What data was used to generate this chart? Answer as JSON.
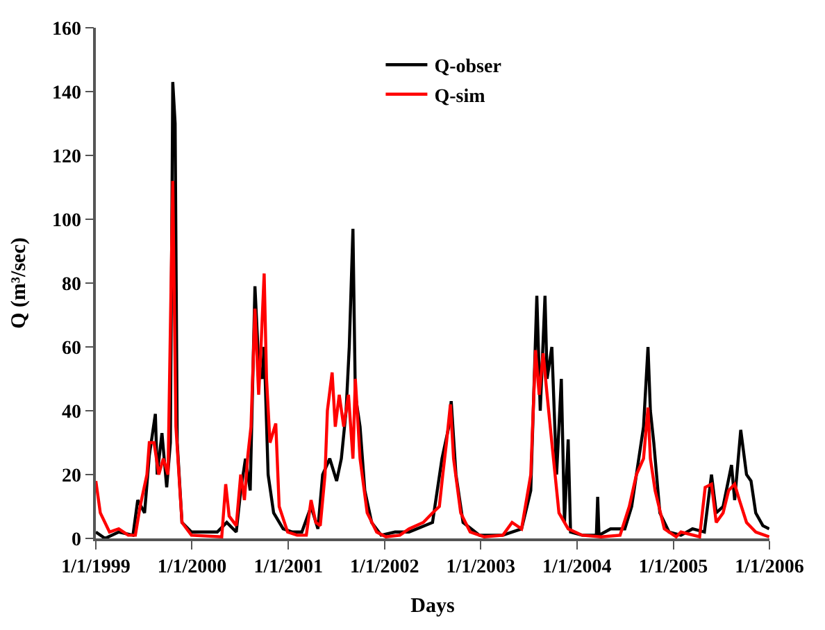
{
  "chart_data": {
    "type": "line",
    "xlabel": "Days",
    "ylabel": "Q (m³/sec)",
    "xlim": [
      "1999-01-01",
      "2006-01-01"
    ],
    "xticks": [
      {
        "value": "1999-01-01",
        "label": "1/1/1999"
      },
      {
        "value": "2000-01-01",
        "label": "1/1/2000"
      },
      {
        "value": "2001-01-01",
        "label": "1/1/2001"
      },
      {
        "value": "2002-01-01",
        "label": "1/1/2002"
      },
      {
        "value": "2003-01-01",
        "label": "1/1/2003"
      },
      {
        "value": "2004-01-01",
        "label": "1/1/2004"
      },
      {
        "value": "2005-01-01",
        "label": "1/1/2005"
      },
      {
        "value": "2006-01-01",
        "label": "1/1/2006"
      }
    ],
    "ylim": [
      0,
      160
    ],
    "yticks": [
      0,
      20,
      40,
      60,
      80,
      100,
      120,
      140,
      160
    ],
    "legend": "top",
    "marker": "none",
    "line_style": "solid",
    "series": [
      {
        "name": "Q-obser",
        "color": "#000000",
        "x": [
          "1999-01-01",
          "1999-02-05",
          "1999-03-29",
          "1999-05-22",
          "1999-06-09",
          "1999-07-05",
          "1999-07-23",
          "1999-08-15",
          "1999-08-22",
          "1999-09-09",
          "1999-09-27",
          "1999-10-11",
          "1999-10-20",
          "1999-10-29",
          "1999-11-06",
          "1999-11-24",
          "1999-12-30",
          "2000-04-06",
          "2000-05-12",
          "2000-06-17",
          "2000-07-04",
          "2000-07-22",
          "2000-08-09",
          "2000-08-27",
          "2000-09-10",
          "2000-09-23",
          "2000-10-01",
          "2000-10-16",
          "2000-11-06",
          "2000-12-12",
          "2001-01-16",
          "2001-02-21",
          "2001-03-28",
          "2001-04-23",
          "2001-05-11",
          "2001-06-07",
          "2001-07-03",
          "2001-07-21",
          "2001-08-08",
          "2001-08-20",
          "2001-09-03",
          "2001-09-12",
          "2001-09-30",
          "2001-10-18",
          "2001-11-13",
          "2001-12-19",
          "2002-02-10",
          "2002-04-04",
          "2002-07-02",
          "2002-08-07",
          "2002-09-02",
          "2002-09-11",
          "2002-09-29",
          "2002-10-26",
          "2002-12-27",
          "2003-03-26",
          "2003-06-05",
          "2003-07-10",
          "2003-08-02",
          "2003-08-15",
          "2003-09-02",
          "2003-09-10",
          "2003-09-28",
          "2003-10-16",
          "2003-11-03",
          "2003-11-15",
          "2003-11-29",
          "2003-12-08",
          "2004-01-21",
          "2004-03-15",
          "2004-03-20",
          "2004-03-25",
          "2004-05-08",
          "2004-07-01",
          "2004-07-27",
          "2004-08-23",
          "2004-09-10",
          "2004-09-27",
          "2004-10-06",
          "2004-10-19",
          "2004-11-11",
          "2004-12-16",
          "2005-01-30",
          "2005-03-15",
          "2005-04-29",
          "2005-05-26",
          "2005-06-13",
          "2005-07-09",
          "2005-08-10",
          "2005-08-22",
          "2005-09-14",
          "2005-10-06",
          "2005-10-23",
          "2005-11-10",
          "2005-12-07",
          "2005-12-31"
        ],
        "values": [
          2,
          0,
          2,
          1,
          12,
          8,
          26,
          39,
          20,
          33,
          16,
          30,
          143,
          130,
          30,
          5,
          2,
          2,
          5,
          2,
          15,
          25,
          15,
          79,
          55,
          50,
          60,
          20,
          8,
          3,
          2,
          2,
          10,
          3,
          20,
          25,
          18,
          25,
          40,
          60,
          97,
          45,
          35,
          15,
          5,
          1,
          2,
          2,
          5,
          25,
          35,
          43,
          20,
          5,
          1,
          1,
          3,
          15,
          76,
          40,
          76,
          50,
          60,
          20,
          50,
          5,
          31,
          2,
          1,
          1,
          13,
          1,
          3,
          3,
          10,
          25,
          35,
          60,
          40,
          30,
          8,
          2,
          1,
          3,
          2,
          20,
          8,
          10,
          23,
          12,
          34,
          20,
          18,
          8,
          4,
          3
        ]
      },
      {
        "name": "Q-sim",
        "color": "#ff0000",
        "x": [
          "1999-01-01",
          "1999-01-18",
          "1999-02-22",
          "1999-03-29",
          "1999-05-04",
          "1999-05-31",
          "1999-06-18",
          "1999-07-14",
          "1999-07-23",
          "1999-08-10",
          "1999-08-28",
          "1999-09-14",
          "1999-10-02",
          "1999-10-20",
          "1999-11-01",
          "1999-11-24",
          "1999-12-30",
          "2000-04-23",
          "2000-05-08",
          "2000-05-21",
          "2000-06-17",
          "2000-07-04",
          "2000-07-18",
          "2000-07-31",
          "2000-08-12",
          "2000-08-27",
          "2000-09-10",
          "2000-09-19",
          "2000-10-01",
          "2000-10-10",
          "2000-10-23",
          "2000-11-14",
          "2000-11-27",
          "2000-12-29",
          "2001-02-03",
          "2001-03-10",
          "2001-03-28",
          "2001-04-15",
          "2001-05-02",
          "2001-05-20",
          "2001-05-29",
          "2001-06-16",
          "2001-06-28",
          "2001-07-13",
          "2001-07-30",
          "2001-08-17",
          "2001-09-03",
          "2001-09-12",
          "2001-09-30",
          "2001-10-27",
          "2001-12-02",
          "2002-01-06",
          "2002-02-28",
          "2002-04-04",
          "2002-05-28",
          "2002-07-02",
          "2002-07-28",
          "2002-08-10",
          "2002-08-24",
          "2002-09-08",
          "2002-09-20",
          "2002-10-17",
          "2002-11-22",
          "2003-01-14",
          "2003-03-26",
          "2003-04-30",
          "2003-06-05",
          "2003-07-10",
          "2003-07-28",
          "2003-08-11",
          "2003-08-26",
          "2003-09-10",
          "2003-09-28",
          "2003-10-25",
          "2003-11-29",
          "2004-01-21",
          "2004-04-02",
          "2004-06-13",
          "2004-07-18",
          "2004-08-14",
          "2004-09-10",
          "2004-09-27",
          "2004-10-06",
          "2004-10-24",
          "2004-11-28",
          "2005-01-12",
          "2005-01-30",
          "2005-04-11",
          "2005-05-02",
          "2005-05-26",
          "2005-06-13",
          "2005-07-09",
          "2005-07-30",
          "2005-08-22",
          "2005-09-09",
          "2005-10-06",
          "2005-11-10",
          "2005-12-31"
        ],
        "values": [
          18,
          8,
          2,
          3,
          1,
          1,
          10,
          20,
          30,
          30,
          20,
          25,
          20,
          112,
          35,
          5,
          1,
          0.5,
          17,
          7,
          4,
          20,
          12,
          26,
          35,
          72,
          45,
          60,
          83,
          50,
          30,
          36,
          10,
          2,
          1,
          1,
          12,
          5,
          4,
          20,
          40,
          52,
          35,
          45,
          35,
          45,
          25,
          50,
          25,
          8,
          2,
          0.5,
          1,
          3,
          5,
          8,
          10,
          20,
          30,
          42,
          25,
          8,
          2,
          0.5,
          1,
          5,
          3,
          20,
          59,
          45,
          58,
          45,
          30,
          8,
          3,
          1,
          0.5,
          1,
          10,
          20,
          25,
          41,
          25,
          15,
          3,
          0.5,
          2,
          0.5,
          16,
          17,
          5,
          8,
          15,
          17,
          12,
          5,
          2,
          0.5
        ]
      }
    ]
  }
}
